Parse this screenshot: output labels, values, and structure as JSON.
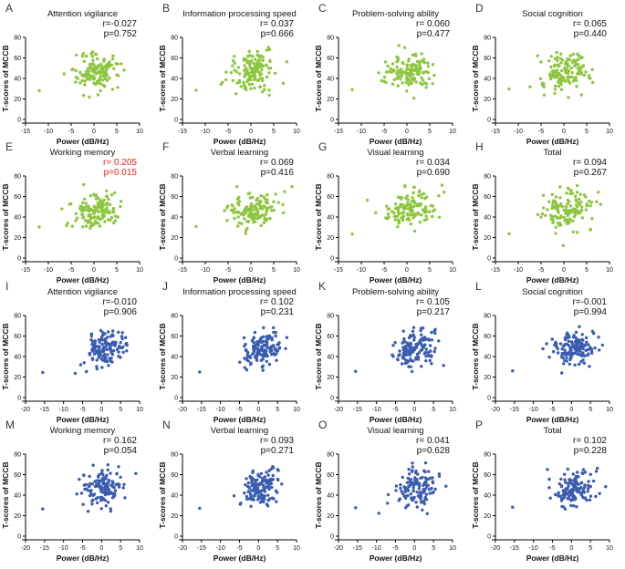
{
  "figure": {
    "colors": {
      "green": "#8dc63f",
      "blue": "#3a5cb0",
      "sig_red": "#e8201a",
      "axis": "#000000"
    },
    "x_label": "Power (dB/Hz)",
    "y_label": "T-scores of MCCB",
    "y_ticks": [
      0,
      20,
      40,
      60,
      80
    ],
    "x_ticks_top": [
      -15,
      -10,
      -5,
      0,
      5,
      10
    ],
    "x_ticks_bottom": [
      -20,
      -15,
      -10,
      -5,
      0,
      5,
      10
    ]
  },
  "chart_data": [
    {
      "letter": "A",
      "title": "Attention vigilance",
      "r": "r=-0.027",
      "p": "p=0.752",
      "color": "green",
      "xlim": [
        -15,
        10
      ],
      "ylim": [
        0,
        80
      ],
      "sig": false,
      "y_label": "T-scores of MCCB"
    },
    {
      "letter": "B",
      "title": "Information processing speed",
      "r": "r= 0.037",
      "p": "p=0.666",
      "color": "green",
      "xlim": [
        -15,
        10
      ],
      "ylim": [
        0,
        80
      ],
      "sig": false,
      "y_label": "T-scores of MCCB"
    },
    {
      "letter": "C",
      "title": "Problem-solving ability",
      "r": "r= 0.060",
      "p": "p=0.477",
      "color": "green",
      "xlim": [
        -15,
        10
      ],
      "ylim": [
        0,
        80
      ],
      "sig": false,
      "y_label": "T-scores of MCCB"
    },
    {
      "letter": "D",
      "title": "Social cognition",
      "r": "r= 0.065",
      "p": "p=0.440",
      "color": "green",
      "xlim": [
        -15,
        10
      ],
      "ylim": [
        0,
        80
      ],
      "sig": false,
      "y_label": "T-scores of MCCB"
    },
    {
      "letter": "E",
      "title": "Working memory",
      "r": "r= 0.205",
      "p": "p=0.015",
      "color": "green",
      "xlim": [
        -15,
        10
      ],
      "ylim": [
        0,
        80
      ],
      "sig": true,
      "y_label": "T-scores of MCCB"
    },
    {
      "letter": "F",
      "title": "Verbal learning",
      "r": "r= 0.069",
      "p": "p=0.416",
      "color": "green",
      "xlim": [
        -15,
        10
      ],
      "ylim": [
        0,
        80
      ],
      "sig": false,
      "y_label": "T-scores of MCCB"
    },
    {
      "letter": "G",
      "title": "Visual learning",
      "r": "r= 0.034",
      "p": "p=0.690",
      "color": "green",
      "xlim": [
        -15,
        10
      ],
      "ylim": [
        0,
        80
      ],
      "sig": false,
      "y_label": "T-scores of MCCB"
    },
    {
      "letter": "H",
      "title": "Total",
      "r": "r= 0.094",
      "p": "p=0.267",
      "color": "green",
      "xlim": [
        -15,
        10
      ],
      "ylim": [
        0,
        80
      ],
      "sig": false,
      "y_label": "T-scores of MCCB"
    },
    {
      "letter": "I",
      "title": "Attention vigilance",
      "r": "r=-0.010",
      "p": "p=0.906",
      "color": "blue",
      "xlim": [
        -20,
        10
      ],
      "ylim": [
        0,
        80
      ],
      "sig": false,
      "y_label": "T-scores of MCCB"
    },
    {
      "letter": "J",
      "title": "Information processing speed",
      "r": "r= 0.102",
      "p": "p=0.231",
      "color": "blue",
      "xlim": [
        -20,
        10
      ],
      "ylim": [
        0,
        80
      ],
      "sig": false,
      "y_label": "T-scores of MCCB"
    },
    {
      "letter": "K",
      "title": "Problem-solving ability",
      "r": "r= 0.105",
      "p": "p=0.217",
      "color": "blue",
      "xlim": [
        -20,
        10
      ],
      "ylim": [
        0,
        80
      ],
      "sig": false,
      "y_label": "T-scores of MCCB"
    },
    {
      "letter": "L",
      "title": "Social cognition",
      "r": "r=-0.001",
      "p": "p=0.994",
      "color": "blue",
      "xlim": [
        -20,
        10
      ],
      "ylim": [
        0,
        80
      ],
      "sig": false,
      "y_label": "T-scores of MCCB"
    },
    {
      "letter": "M",
      "title": "Working memory",
      "r": "r= 0.162",
      "p": "p=0.054",
      "color": "blue",
      "xlim": [
        -20,
        10
      ],
      "ylim": [
        0,
        80
      ],
      "sig": false,
      "y_label": "T-scores of MCCB"
    },
    {
      "letter": "N",
      "title": "Verbal learning",
      "r": "r= 0.093",
      "p": "p=0.271",
      "color": "blue",
      "xlim": [
        -20,
        10
      ],
      "ylim": [
        0,
        80
      ],
      "sig": false,
      "y_label": "T-scores of MCCB"
    },
    {
      "letter": "O",
      "title": "Visual learning",
      "r": "r= 0.041",
      "p": "p=0.628",
      "color": "blue",
      "xlim": [
        -20,
        10
      ],
      "ylim": [
        0,
        80
      ],
      "sig": false,
      "y_label": "T-scores of MCCB"
    },
    {
      "letter": "P",
      "title": "Total",
      "r": "r= 0.102",
      "p": "p=0.228",
      "color": "blue",
      "xlim": [
        -20,
        10
      ],
      "ylim": [
        0,
        80
      ],
      "sig": false,
      "y_label": "T-scores of MCCB"
    }
  ]
}
